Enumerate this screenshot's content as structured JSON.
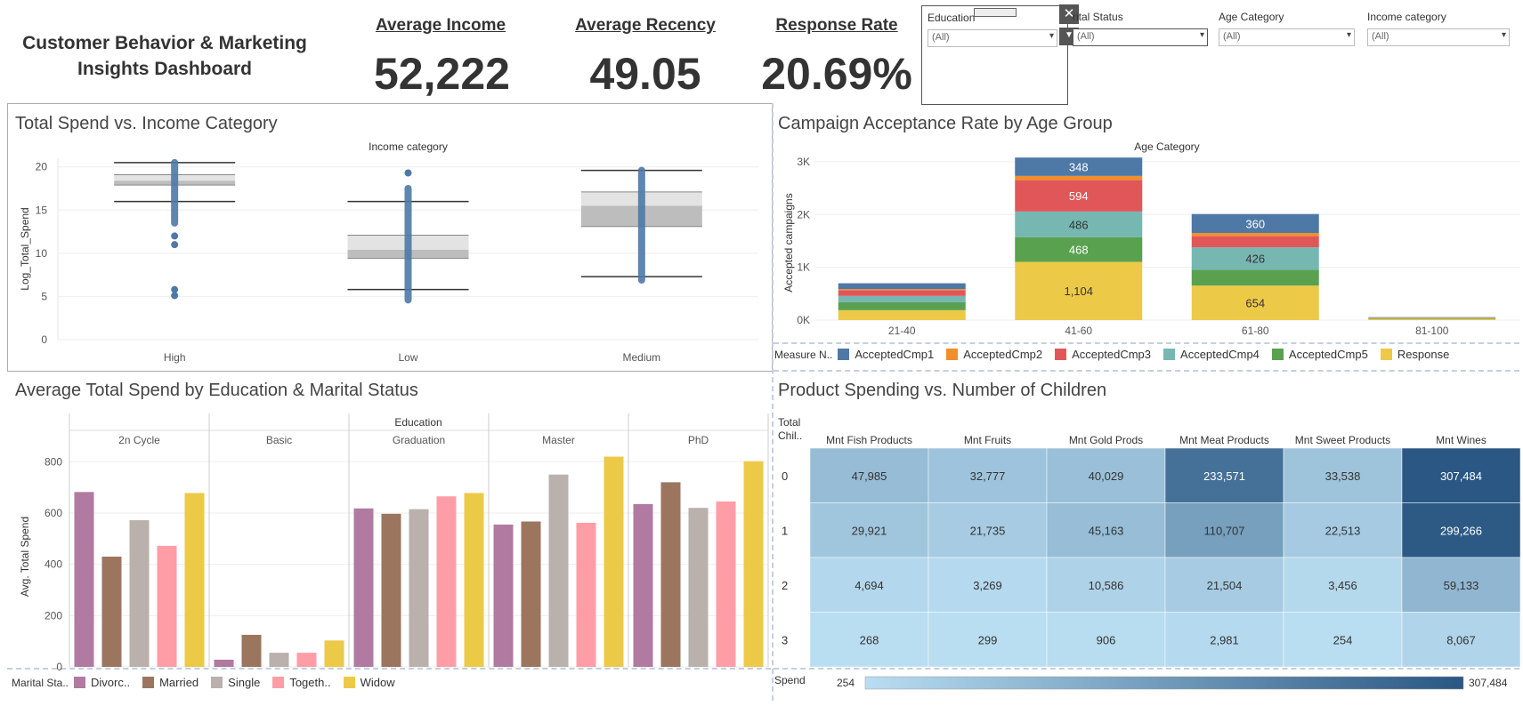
{
  "title": "Customer Behavior & Marketing Insights Dashboard",
  "kpis": [
    {
      "label": "Average Income",
      "value": "52,222"
    },
    {
      "label": "Average Recency",
      "value": "49.05"
    },
    {
      "label": "Response Rate",
      "value": "20.69%"
    }
  ],
  "filters": {
    "education": {
      "label": "Education",
      "value": "(All)"
    },
    "marital": {
      "label": "rital Status",
      "value": "(All)"
    },
    "age": {
      "label": "Age Category",
      "value": "(All)"
    },
    "income": {
      "label": "Income category",
      "value": "(All)"
    }
  },
  "colors": {
    "cmp1": "#4e79a7",
    "cmp2": "#f28e2b",
    "cmp3": "#e15759",
    "cmp4": "#76b7b2",
    "cmp5": "#59a14f",
    "response": "#edc948",
    "divorced": "#b07aa1",
    "married": "#9c755f",
    "single": "#bab0ac",
    "together": "#ff9da7",
    "widow": "#edc948",
    "box_point": "#4e79a7"
  },
  "chart_data": [
    {
      "id": "boxplot",
      "type": "box",
      "title": "Total Spend vs. Income Category",
      "header": "Income category",
      "ylabel": "Log_Total_Spend",
      "ylim": [
        0,
        21
      ],
      "yticks": [
        0,
        5,
        10,
        15,
        20
      ],
      "categories": [
        "High",
        "Low",
        "Medium"
      ],
      "boxes": [
        {
          "category": "High",
          "whisker_low": 16,
          "q1": 17.9,
          "median": 18.4,
          "q3": 19.1,
          "whisker_high": 20.5,
          "points_min": 13.5,
          "points_max": 20.5,
          "outliers": [
            11,
            12,
            5.8,
            5.1
          ]
        },
        {
          "category": "Low",
          "whisker_low": 5.8,
          "q1": 9.4,
          "median": 10.4,
          "q3": 12.1,
          "whisker_high": 16,
          "points_min": 4.6,
          "points_max": 17.5,
          "outliers": [
            19.3
          ]
        },
        {
          "category": "Medium",
          "whisker_low": 7.3,
          "q1": 13.1,
          "median": 15.5,
          "q3": 17.1,
          "whisker_high": 19.6,
          "points_min": 6.9,
          "points_max": 19.6,
          "outliers": []
        }
      ]
    },
    {
      "id": "stacked",
      "type": "bar",
      "stacked": true,
      "title": "Campaign Acceptance Rate by Age Group",
      "header": "Age Category",
      "ylabel": "Accepted campaigns",
      "ylim": [
        0,
        3100
      ],
      "yticks": [
        0,
        1000,
        2000,
        3000
      ],
      "yticklabels": [
        "0K",
        "1K",
        "2K",
        "3K"
      ],
      "categories": [
        "21-40",
        "41-60",
        "61-80",
        "81-100"
      ],
      "legend_title": "Measure N..",
      "series": [
        {
          "name": "Response",
          "color_key": "response",
          "values": [
            188,
            1104,
            654,
            25
          ]
        },
        {
          "name": "AcceptedCmp5",
          "color_key": "cmp5",
          "values": [
            150,
            468,
            300,
            12
          ]
        },
        {
          "name": "AcceptedCmp4",
          "color_key": "cmp4",
          "values": [
            120,
            486,
            426,
            8
          ]
        },
        {
          "name": "AcceptedCmp3",
          "color_key": "cmp3",
          "values": [
            110,
            594,
            210,
            6
          ]
        },
        {
          "name": "AcceptedCmp2",
          "color_key": "cmp2",
          "values": [
            20,
            80,
            60,
            2
          ]
        },
        {
          "name": "AcceptedCmp1",
          "color_key": "cmp1",
          "values": [
            110,
            348,
            360,
            5
          ]
        }
      ],
      "data_labels": [
        {
          "series": "AcceptedCmp1",
          "category": "41-60",
          "text": "348"
        },
        {
          "series": "AcceptedCmp3",
          "category": "41-60",
          "text": "594"
        },
        {
          "series": "AcceptedCmp4",
          "category": "41-60",
          "text": "486"
        },
        {
          "series": "AcceptedCmp5",
          "category": "41-60",
          "text": "468"
        },
        {
          "series": "Response",
          "category": "41-60",
          "text": "1,104"
        },
        {
          "series": "AcceptedCmp1",
          "category": "61-80",
          "text": "360"
        },
        {
          "series": "AcceptedCmp4",
          "category": "61-80",
          "text": "426"
        },
        {
          "series": "Response",
          "category": "61-80",
          "text": "654"
        }
      ],
      "legend_order": [
        "AcceptedCmp1",
        "AcceptedCmp2",
        "AcceptedCmp3",
        "AcceptedCmp4",
        "AcceptedCmp5",
        "Response"
      ]
    },
    {
      "id": "grouped",
      "type": "bar",
      "title": "Average Total Spend by Education & Marital Status",
      "header": "Education",
      "ylabel": "Avg. Total Spend",
      "ylim": [
        0,
        860
      ],
      "yticks": [
        0,
        200,
        400,
        600,
        800
      ],
      "groups": [
        "2n Cycle",
        "Basic",
        "Graduation",
        "Master",
        "PhD"
      ],
      "legend_title": "Marital Sta..",
      "series": [
        {
          "name": "Divorc..",
          "color_key": "divorced",
          "values": [
            682,
            28,
            618,
            555,
            635
          ]
        },
        {
          "name": "Married",
          "color_key": "married",
          "values": [
            430,
            125,
            597,
            567,
            720
          ]
        },
        {
          "name": "Single",
          "color_key": "single",
          "values": [
            572,
            55,
            615,
            750,
            620
          ]
        },
        {
          "name": "Togeth..",
          "color_key": "together",
          "values": [
            472,
            55,
            665,
            562,
            645
          ]
        },
        {
          "name": "Widow",
          "color_key": "widow",
          "values": [
            678,
            103,
            678,
            820,
            802
          ]
        }
      ]
    },
    {
      "id": "heatmap",
      "type": "heatmap",
      "title": "Product Spending vs. Number of Children",
      "row_header": "Total Chil..",
      "columns": [
        "Mnt Fish Products",
        "Mnt Fruits",
        "Mnt Gold Prods",
        "Mnt Meat Products",
        "Mnt Sweet Products",
        "Mnt Wines"
      ],
      "rows": [
        "0",
        "1",
        "2",
        "3"
      ],
      "values": [
        [
          47985,
          32777,
          40029,
          233571,
          33538,
          307484
        ],
        [
          29921,
          21735,
          45163,
          110707,
          22513,
          299266
        ],
        [
          4694,
          3269,
          10586,
          21504,
          3456,
          59133
        ],
        [
          268,
          299,
          906,
          2981,
          254,
          8067
        ]
      ],
      "labels": [
        [
          "47,985",
          "32,777",
          "40,029",
          "233,571",
          "33,538",
          "307,484"
        ],
        [
          "29,921",
          "21,735",
          "45,163",
          "110,707",
          "22,513",
          "299,266"
        ],
        [
          "4,694",
          "3,269",
          "10,586",
          "21,504",
          "3,456",
          "59,133"
        ],
        [
          "268",
          "299",
          "906",
          "2,981",
          "254",
          "8,067"
        ]
      ],
      "legend_title": "Spend",
      "min_label": "254",
      "max_label": "307,484",
      "color_low": "#b9ddf1",
      "color_high": "#2a5783"
    }
  ]
}
